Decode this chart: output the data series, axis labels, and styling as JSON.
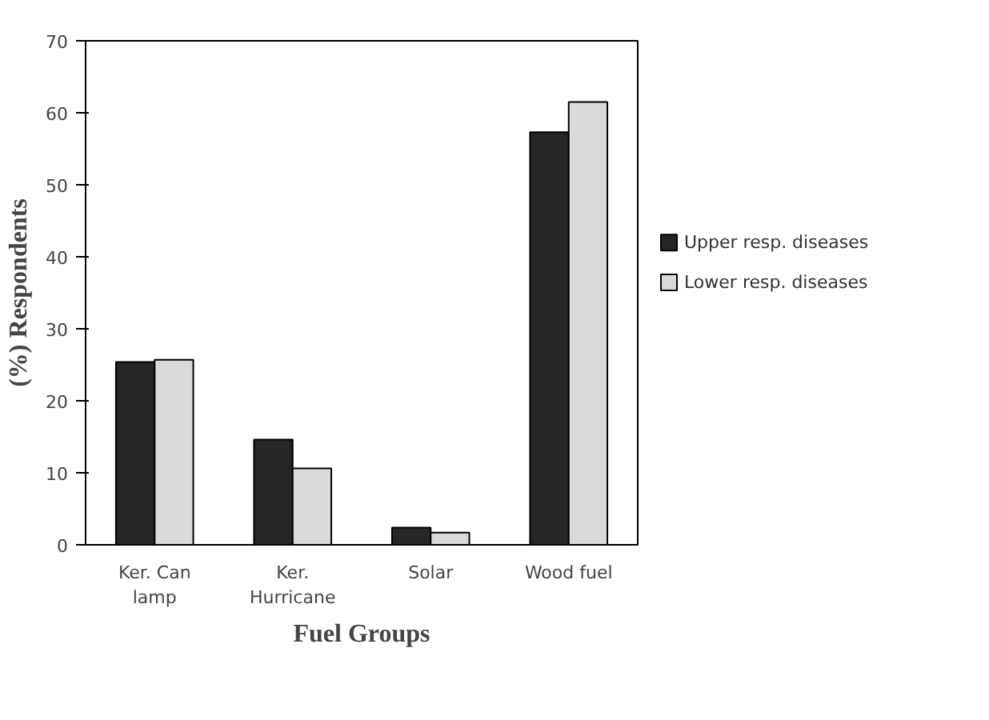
{
  "chart_data": {
    "type": "bar",
    "xlabel": "Fuel Groups",
    "ylabel": "(%) Respondents",
    "categories": [
      "Ker. Can\nlamp",
      "Ker.\nHurricane",
      "Solar",
      "Wood fuel"
    ],
    "series": [
      {
        "name": "Upper resp. diseases",
        "color": "#262626",
        "values": [
          25.4,
          14.6,
          2.4,
          57.3
        ]
      },
      {
        "name": "Lower resp. diseases",
        "color": "#d9d9d9",
        "values": [
          25.7,
          10.6,
          1.7,
          61.5
        ]
      }
    ],
    "ylim": [
      0,
      70
    ],
    "yticks": [
      0,
      10,
      20,
      30,
      40,
      50,
      60,
      70
    ],
    "legend": "right"
  }
}
